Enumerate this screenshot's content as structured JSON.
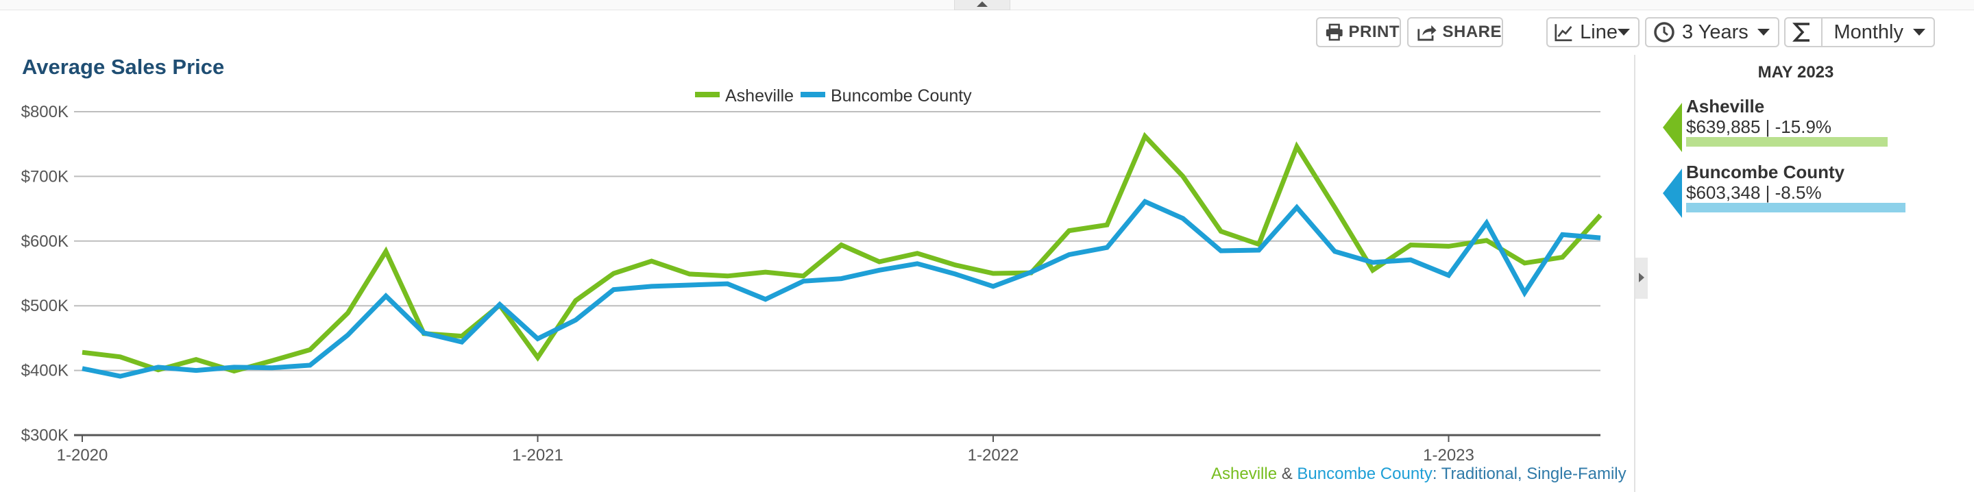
{
  "toolbar": {
    "print_label": "PRINT",
    "share_label": "SHARE",
    "chart_type_label": "Line",
    "range_label": "3 Years",
    "interval_label": "Monthly"
  },
  "colors": {
    "asheville": "#77bd1f",
    "buncombe": "#1e9fd6",
    "asheville_light": "#b9e08e",
    "buncombe_light": "#8dd1ea",
    "title": "#1f4e73"
  },
  "icons": {
    "print": "printer-icon",
    "share": "share-icon",
    "chart_type": "line-chart-icon",
    "range": "clock-icon",
    "interval": "sigma-icon"
  },
  "chart_data": {
    "type": "line",
    "title": "Average Sales Price",
    "ylim": [
      300000,
      800000
    ],
    "y_ticks": [
      300000,
      400000,
      500000,
      600000,
      700000,
      800000
    ],
    "y_tick_labels": [
      "$300K",
      "$400K",
      "$500K",
      "$600K",
      "$700K",
      "$800K"
    ],
    "x_tick_labels": [
      "1-2020",
      "1-2021",
      "1-2022",
      "1-2023"
    ],
    "x_tick_index": [
      0,
      12,
      24,
      36
    ],
    "grid": true,
    "legend_position": "top-center",
    "x": [
      "1-2020",
      "2-2020",
      "3-2020",
      "4-2020",
      "5-2020",
      "6-2020",
      "7-2020",
      "8-2020",
      "9-2020",
      "10-2020",
      "11-2020",
      "12-2020",
      "1-2021",
      "2-2021",
      "3-2021",
      "4-2021",
      "5-2021",
      "6-2021",
      "7-2021",
      "8-2021",
      "9-2021",
      "10-2021",
      "11-2021",
      "12-2021",
      "1-2022",
      "2-2022",
      "3-2022",
      "4-2022",
      "5-2022",
      "6-2022",
      "7-2022",
      "8-2022",
      "9-2022",
      "10-2022",
      "11-2022",
      "12-2022",
      "1-2023",
      "2-2023",
      "3-2023",
      "4-2023",
      "5-2023"
    ],
    "series": [
      {
        "name": "Asheville",
        "color": "#77bd1f",
        "values": [
          428000,
          421000,
          401000,
          417000,
          399000,
          415000,
          432000,
          489000,
          584000,
          457000,
          453000,
          501000,
          420000,
          508000,
          550000,
          569000,
          549000,
          546000,
          552000,
          546000,
          594000,
          568000,
          581000,
          563000,
          550000,
          551000,
          616000,
          625000,
          762000,
          700000,
          615000,
          595000,
          746000,
          652000,
          555000,
          594000,
          592000,
          601000,
          566000,
          575000,
          640000
        ]
      },
      {
        "name": "Buncombe County",
        "color": "#1e9fd6",
        "values": [
          403000,
          391000,
          405000,
          400000,
          405000,
          404000,
          408000,
          455000,
          515000,
          458000,
          444000,
          502000,
          449000,
          478000,
          525000,
          530000,
          532000,
          534000,
          510000,
          538000,
          542000,
          555000,
          565000,
          549000,
          530000,
          552000,
          579000,
          590000,
          661000,
          635000,
          585000,
          586000,
          652000,
          584000,
          567000,
          571000,
          547000,
          628000,
          520000,
          610000,
          605000
        ]
      }
    ]
  },
  "side_panel": {
    "month_label": "MAY 2023",
    "entries": [
      {
        "name": "Asheville",
        "value": "$639,885 | -15.9%",
        "bar_fraction": 0.841
      },
      {
        "name": "Buncombe County",
        "value": "$603,348 | -8.5%",
        "bar_fraction": 0.915
      }
    ]
  },
  "footnote": {
    "series_a": "Asheville",
    "separator": " & ",
    "series_b": "Buncombe County",
    "rest": ": Traditional, Single-Family"
  }
}
